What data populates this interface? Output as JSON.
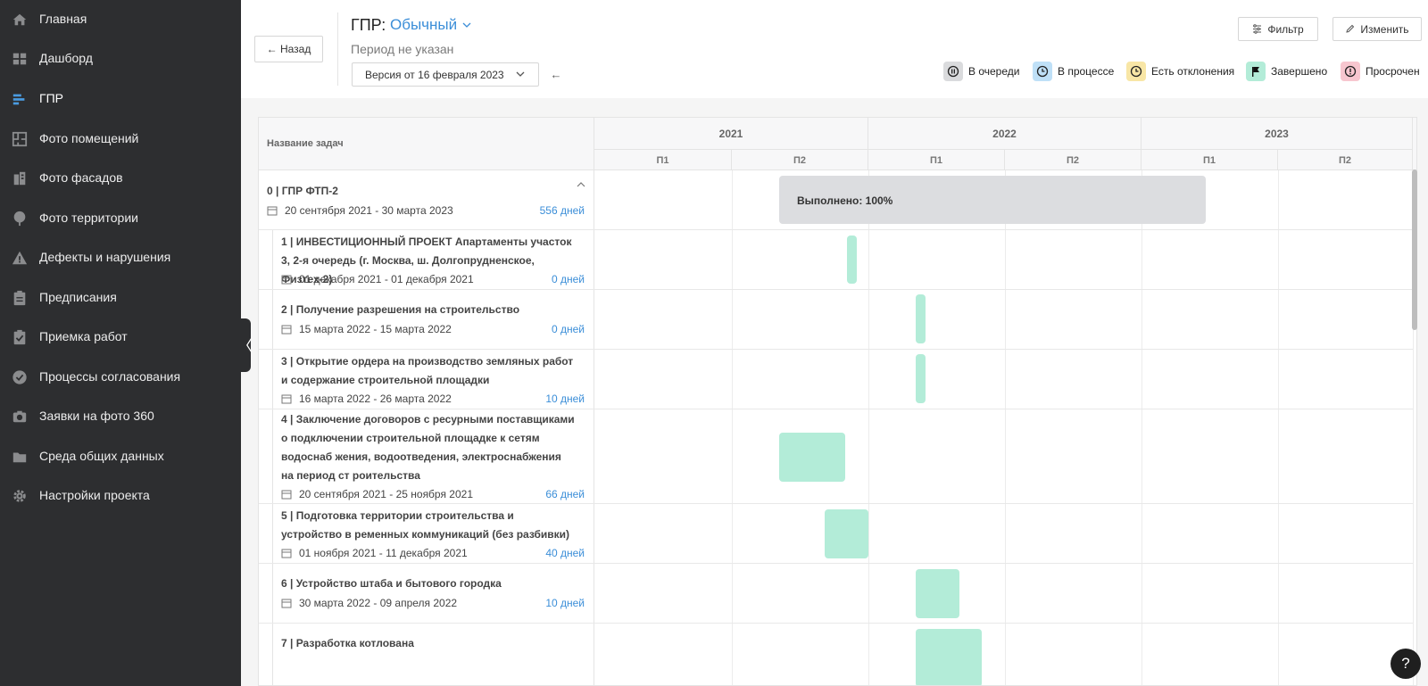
{
  "sidebar": {
    "items": [
      {
        "label": "Главная",
        "icon": "home-icon"
      },
      {
        "label": "Дашборд",
        "icon": "dashboard-icon"
      },
      {
        "label": "ГПР",
        "icon": "gantt-icon",
        "active": true
      },
      {
        "label": "Фото помещений",
        "icon": "floorplan-icon"
      },
      {
        "label": "Фото фасадов",
        "icon": "building-icon"
      },
      {
        "label": "Фото территории",
        "icon": "tree-icon"
      },
      {
        "label": "Дефекты и нарушения",
        "icon": "warning-icon"
      },
      {
        "label": "Предписания",
        "icon": "clipboard-icon"
      },
      {
        "label": "Приемка работ",
        "icon": "clipboard-check-icon"
      },
      {
        "label": "Процессы согласования",
        "icon": "check-circle-icon"
      },
      {
        "label": "Заявки на фото 360",
        "icon": "camera-icon"
      },
      {
        "label": "Среда общих данных",
        "icon": "folder-icon"
      },
      {
        "label": "Настройки проекта",
        "icon": "gear-icon"
      }
    ],
    "collapse_glyph": "〈"
  },
  "header": {
    "back_label": "← Назад",
    "title": "ГПР:",
    "type_value": "Обычный",
    "period": "Период не указан",
    "version": "Версия от 16 февраля 2023",
    "prev_glyph": "←",
    "filter_label": "Фильтр",
    "edit_label": "Изменить"
  },
  "legend": [
    {
      "label": "В очереди",
      "color": "#dadbdd",
      "icon": "pause-icon"
    },
    {
      "label": "В процессе",
      "color": "#bfe0f7",
      "icon": "clock-icon"
    },
    {
      "label": "Есть отклонения",
      "color": "#f8e6a6",
      "icon": "clock-icon"
    },
    {
      "label": "Завершено",
      "color": "#b3ecd8",
      "icon": "flag-icon"
    },
    {
      "label": "Просрочен",
      "color": "#f7c6cf",
      "icon": "alert-icon"
    }
  ],
  "table": {
    "name_header": "Название задач",
    "years": [
      "2021",
      "2022",
      "2023"
    ],
    "halves": [
      "П1",
      "П2",
      "П1",
      "П2",
      "П1",
      "П2"
    ],
    "tasks": [
      {
        "name": "0 | ГПР ФТП-2",
        "dates": "20 сентября 2021 - 30 марта 2023",
        "duration": "556 дней",
        "status": "queued",
        "progress_label": "Выполнено: 100%"
      },
      {
        "name": "1 | ИНВЕСТИЦИОННЫЙ ПРОЕКТ Апартаменты участок 3, 2-я очередь (г. Москва, ш. Долгопрудненское, Физтех-2)",
        "dates": "01 декабря 2021 - 01 декабря 2021",
        "duration": "0 дней",
        "status": "done"
      },
      {
        "name": "2 | Получение разрешения на строительство",
        "dates": "15 марта 2022 - 15 марта 2022",
        "duration": "0 дней",
        "status": "done"
      },
      {
        "name": "3 | Открытие ордера на производство земляных работ и содержание строительной площадки",
        "dates": "16 марта 2022 - 26 марта 2022",
        "duration": "10 дней",
        "status": "done"
      },
      {
        "name": "4 | Заключение договоров с ресурными поставщиками о подключении строительной площадке к сетям водоснаб жения, водоотведения, электроснабжения на период ст роительства",
        "dates": "20 сентября 2021 - 25 ноября 2021",
        "duration": "66 дней",
        "status": "done"
      },
      {
        "name": "5 | Подготовка территории строительства и устройство в ременных коммуникаций (без разбивки)",
        "dates": "01 ноября 2021 - 11 декабря 2021",
        "duration": "40 дней",
        "status": "done"
      },
      {
        "name": "6 | Устройство штаба и бытового городка",
        "dates": "30 марта 2022 - 09 апреля 2022",
        "duration": "10 дней",
        "status": "done"
      },
      {
        "name": "7 | Разработка котлована",
        "dates": "",
        "duration": "",
        "status": "done"
      }
    ]
  },
  "help_label": "?"
}
